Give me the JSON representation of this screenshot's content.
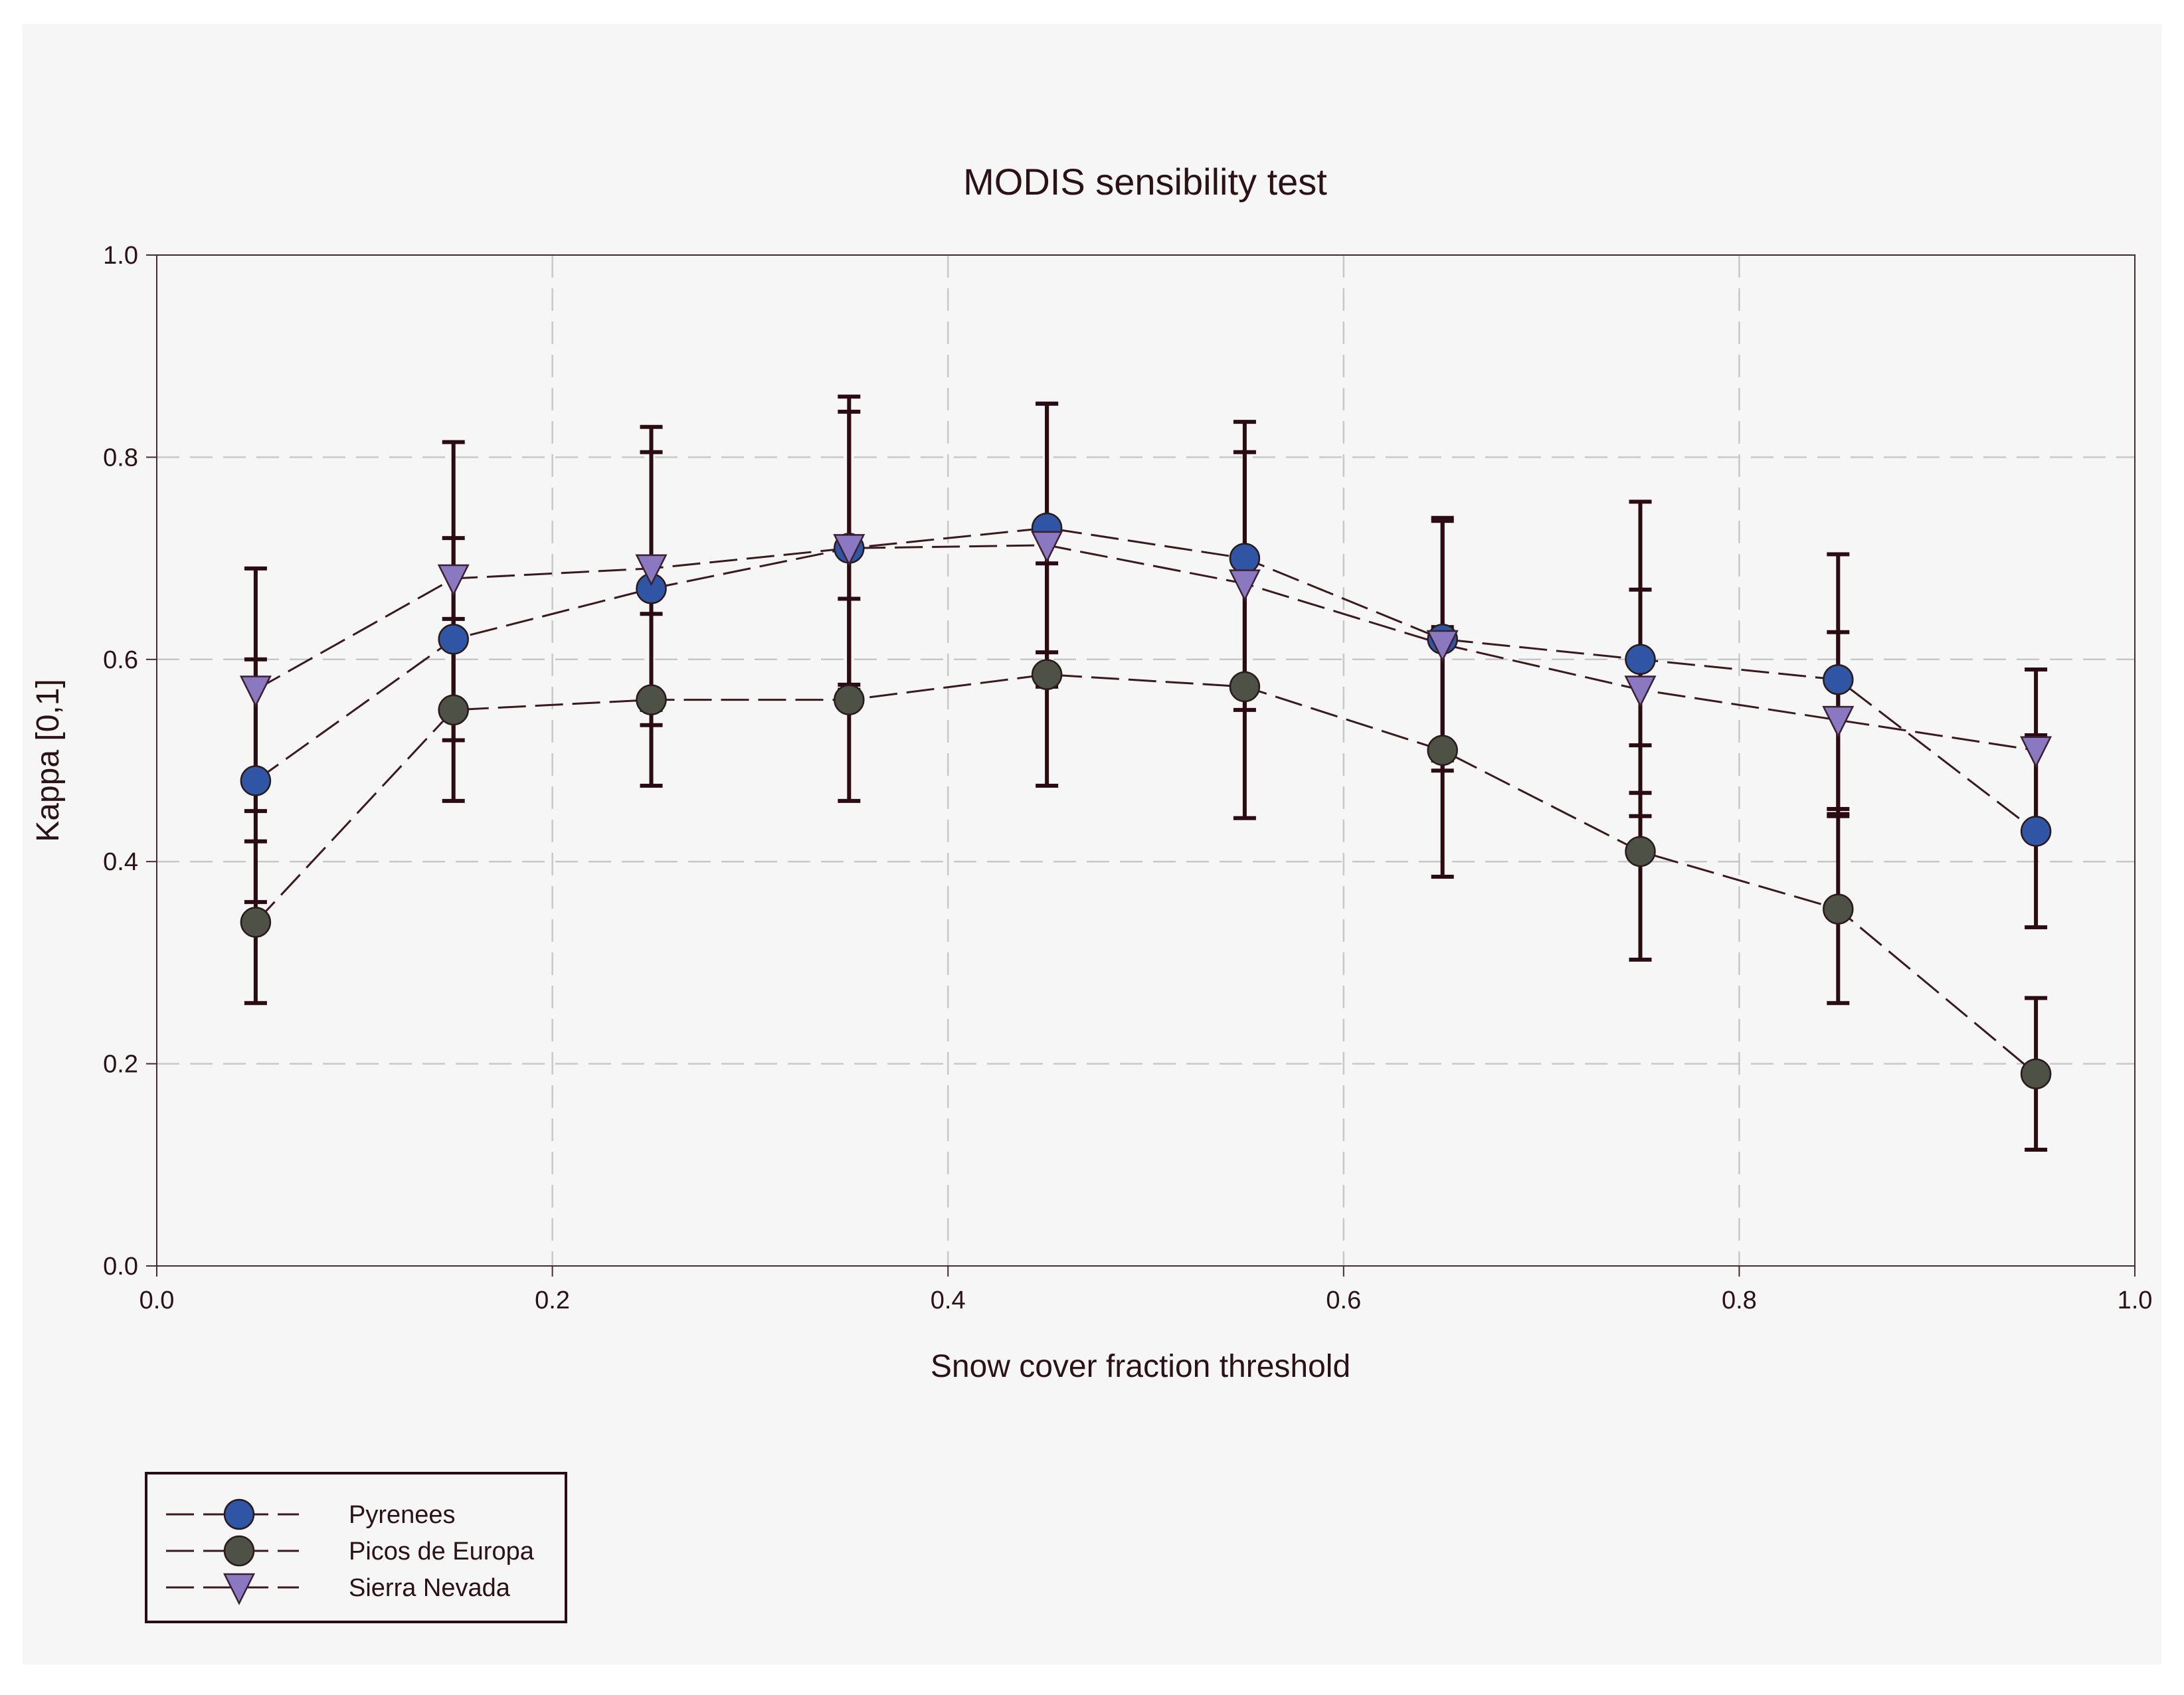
{
  "chart_data": {
    "type": "line",
    "title": "MODIS sensibility test",
    "xlabel": "Snow cover fraction threshold",
    "ylabel": "Kappa [0,1]",
    "xlim": [
      0.0,
      1.0
    ],
    "ylim": [
      0.0,
      1.0
    ],
    "xticks": [
      "0.0",
      "0.2",
      "0.4",
      "0.6",
      "0.8",
      "1.0"
    ],
    "yticks": [
      "0.0",
      "0.2",
      "0.4",
      "0.6",
      "0.8",
      "1.0"
    ],
    "grid": true,
    "legend_position": "bottom-left",
    "x": [
      0.05,
      0.15,
      0.25,
      0.35,
      0.45,
      0.55,
      0.65,
      0.75,
      0.85,
      0.95
    ],
    "series": [
      {
        "name": "Pyrenees",
        "marker": "circle",
        "color": "#2f55a4",
        "values": [
          0.48,
          0.62,
          0.67,
          0.71,
          0.73,
          0.7,
          0.62,
          0.6,
          0.58,
          0.43
        ],
        "error_low": [
          0.36,
          0.52,
          0.535,
          0.575,
          0.607,
          0.565,
          0.5,
          0.445,
          0.452,
          0.335
        ],
        "error_high": [
          0.6,
          0.72,
          0.805,
          0.845,
          0.853,
          0.835,
          0.74,
          0.756,
          0.704,
          0.525
        ]
      },
      {
        "name": "Picos de Europa",
        "marker": "circle",
        "color": "#4d5146",
        "values": [
          0.34,
          0.55,
          0.56,
          0.56,
          0.585,
          0.573,
          0.51,
          0.41,
          0.353,
          0.19
        ],
        "error_low": [
          0.26,
          0.46,
          0.475,
          0.46,
          0.475,
          0.443,
          0.385,
          0.303,
          0.26,
          0.115
        ],
        "error_high": [
          0.42,
          0.64,
          0.645,
          0.66,
          0.695,
          0.7,
          0.632,
          0.515,
          0.447,
          0.265
        ]
      },
      {
        "name": "Sierra Nevada",
        "marker": "triangle-down",
        "color": "#8a78c0",
        "values": [
          0.57,
          0.68,
          0.69,
          0.71,
          0.713,
          0.675,
          0.615,
          0.57,
          0.54,
          0.51
        ],
        "error_low": [
          0.45,
          0.545,
          0.55,
          0.57,
          0.573,
          0.55,
          0.49,
          0.468,
          0.445,
          0.43
        ],
        "error_high": [
          0.69,
          0.815,
          0.83,
          0.86,
          0.853,
          0.805,
          0.737,
          0.669,
          0.627,
          0.59
        ]
      }
    ]
  }
}
